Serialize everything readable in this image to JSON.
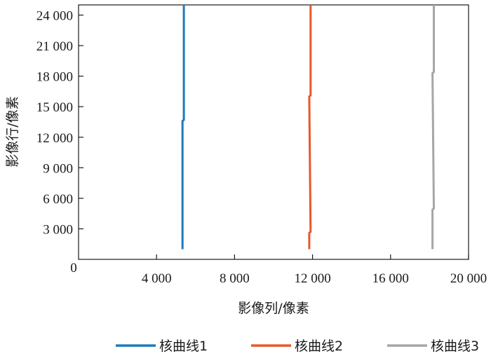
{
  "chart_data": {
    "type": "line",
    "xlabel": "影像列/像素",
    "ylabel": "影像行/像素",
    "xlim": [
      0,
      20000
    ],
    "ylim": [
      0,
      25000
    ],
    "x_ticks": [
      4000,
      8000,
      12000,
      16000,
      20000
    ],
    "x_tick_labels": [
      "4 000",
      "8 000",
      "12 000",
      "16 000",
      "20 000"
    ],
    "y_ticks": [
      3000,
      6000,
      9000,
      12000,
      15000,
      18000,
      21000,
      24000
    ],
    "y_tick_labels": [
      "3 000",
      "6 000",
      "9 000",
      "12 000",
      "15 000",
      "18 000",
      "21 000",
      "24 000"
    ],
    "origin_label": "0",
    "grid": false,
    "legend_position": "bottom",
    "series": [
      {
        "name": "核曲线1",
        "color": "#1f7ab8",
        "points": [
          [
            5330,
            1000
          ],
          [
            5330,
            13600
          ],
          [
            5400,
            13700
          ],
          [
            5400,
            25000
          ]
        ]
      },
      {
        "name": "核曲线2",
        "color": "#e8582a",
        "points": [
          [
            11830,
            1000
          ],
          [
            11830,
            2600
          ],
          [
            11900,
            2700
          ],
          [
            11830,
            16000
          ],
          [
            11900,
            16100
          ],
          [
            11900,
            25000
          ]
        ]
      },
      {
        "name": "核曲线3",
        "color": "#a6a6a6",
        "points": [
          [
            18150,
            1000
          ],
          [
            18150,
            4900
          ],
          [
            18220,
            5000
          ],
          [
            18150,
            18300
          ],
          [
            18220,
            18400
          ],
          [
            18220,
            25000
          ]
        ]
      }
    ]
  }
}
